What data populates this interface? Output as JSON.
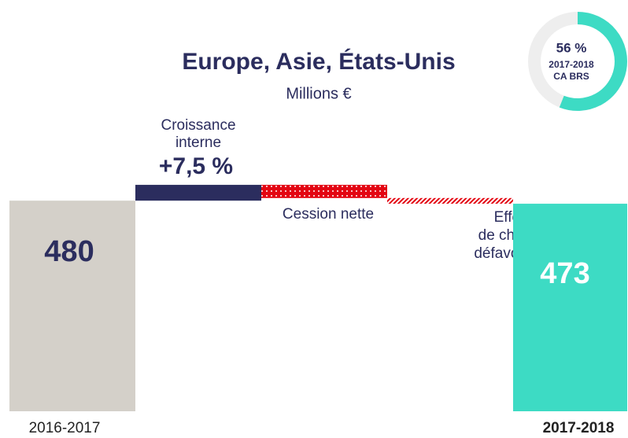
{
  "chart_data": {
    "type": "waterfall",
    "title": "Europe, Asie, États-Unis",
    "subtitle": "Millions €",
    "categories": [
      [
        "2016-2017"
      ],
      [
        "Croissance",
        "interne"
      ],
      [
        "Cession nette"
      ],
      [
        "Effet",
        "de change",
        "défavorable"
      ],
      [
        "2017-2018"
      ]
    ],
    "values": [
      480,
      36,
      -30,
      -13,
      473
    ],
    "value_labels": [
      "480",
      null,
      null,
      null,
      "473"
    ],
    "growth_label": "+7,5 %",
    "colors": [
      "#d4d0c9",
      "#2b2d5e",
      "#e30613",
      "#e30613",
      "#3ddbc4"
    ],
    "donut": {
      "value": 56,
      "label": "56 %",
      "lines": [
        "2017-2018",
        "CA BRS"
      ],
      "color": "#3ddbc4",
      "track": "#eeeeee"
    }
  }
}
